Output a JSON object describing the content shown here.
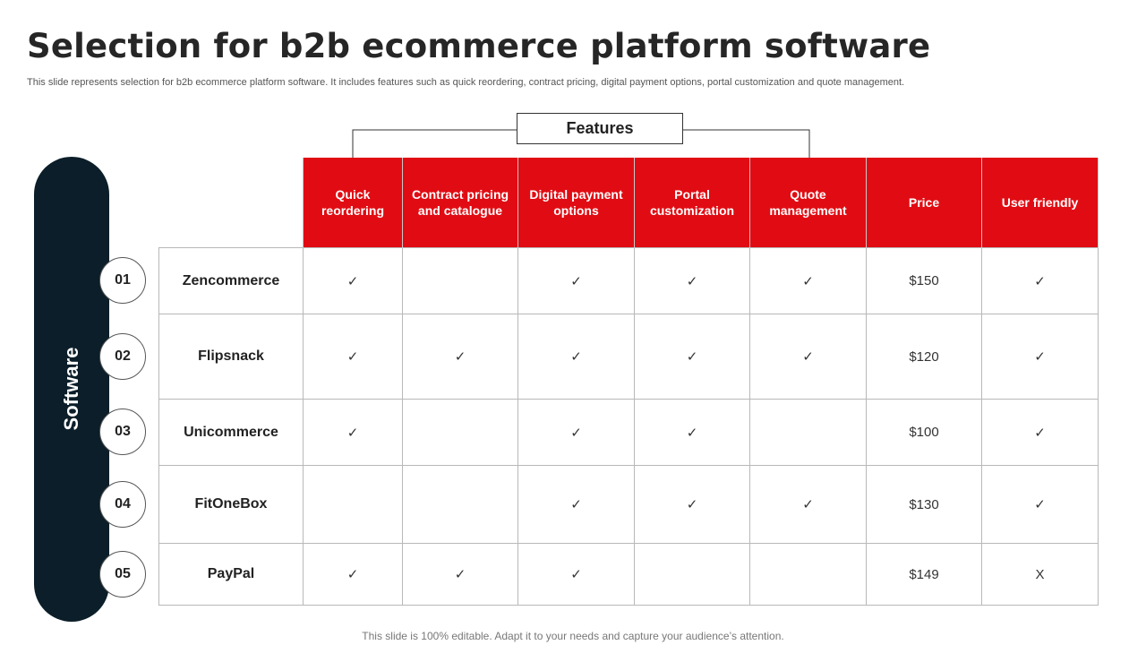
{
  "slide": {
    "title": "Selection for b2b ecommerce platform software",
    "subtitle": "This slide represents selection for b2b ecommerce platform software. It includes features such as quick reordering, contract pricing, digital payment options, portal customization and quote management.",
    "features_label": "Features",
    "sidebar_label": "Software",
    "footer": "This slide is 100% editable. Adapt it to your needs and capture your audience’s attention."
  },
  "table": {
    "headers": [
      "Quick reordering",
      "Contract pricing and catalogue",
      "Digital payment options",
      "Portal customization",
      "Quote management",
      "Price",
      "User friendly"
    ],
    "rows": [
      {
        "num": "01",
        "name": "Zencommerce",
        "cells": [
          "✓",
          "",
          "✓",
          "✓",
          "✓",
          "$150",
          "✓"
        ]
      },
      {
        "num": "02",
        "name": "Flipsnack",
        "cells": [
          "✓",
          "✓",
          "✓",
          "✓",
          "✓",
          "$120",
          "✓"
        ]
      },
      {
        "num": "03",
        "name": "Unicommerce",
        "cells": [
          "✓",
          "",
          "✓",
          "✓",
          "",
          "$100",
          "✓"
        ]
      },
      {
        "num": "04",
        "name": "FitOneBox",
        "cells": [
          "",
          "",
          "✓",
          "✓",
          "✓",
          "$130",
          "✓"
        ]
      },
      {
        "num": "05",
        "name": "PayPal",
        "cells": [
          "✓",
          "✓",
          "✓",
          "",
          "",
          "$149",
          "X"
        ]
      }
    ]
  },
  "colors": {
    "accent": "#e10c13",
    "sidebar": "#0b1e29"
  }
}
